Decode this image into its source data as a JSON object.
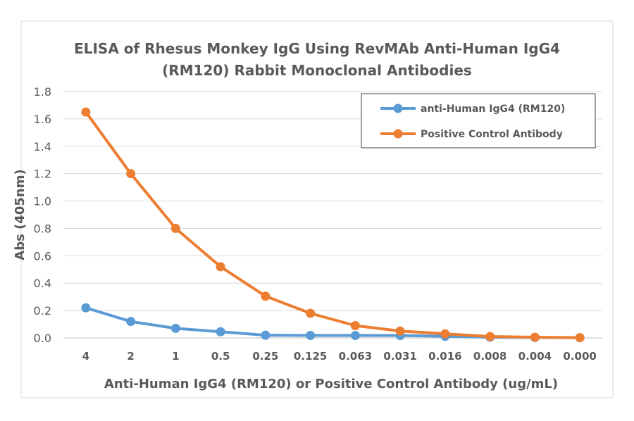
{
  "chart_data": {
    "type": "line",
    "title": "ELISA of Rhesus Monkey IgG Using RevMAb Anti-Human IgG4 (RM120) Rabbit Monoclonal Antibodies",
    "title_lines": [
      "ELISA of Rhesus Monkey IgG Using RevMAb Anti-Human IgG4",
      "(RM120) Rabbit Monoclonal Antibodies"
    ],
    "xlabel": "Anti-Human IgG4 (RM120) or Positive Control Antibody (ug/mL)",
    "ylabel": "Abs (405nm)",
    "categories": [
      "4",
      "2",
      "1",
      "0.5",
      "0.25",
      "0.125",
      "0.063",
      "0.031",
      "0.016",
      "0.008",
      "0.004",
      "0.000"
    ],
    "ylim": [
      0,
      1.8
    ],
    "yticks": [
      "0.0",
      "0.2",
      "0.4",
      "0.6",
      "0.8",
      "1.0",
      "1.2",
      "1.4",
      "1.6",
      "1.8"
    ],
    "grid": true,
    "legend_position": "top-right",
    "series": [
      {
        "name": "anti-Human IgG4 (RM120)",
        "color": "#5b9bd5",
        "values": [
          0.22,
          0.12,
          0.07,
          0.045,
          0.02,
          0.018,
          0.018,
          0.018,
          0.012,
          0.005,
          0.003,
          0.002
        ]
      },
      {
        "name": "Positive Control Antibody",
        "color": "#ed7d31",
        "values": [
          1.65,
          1.2,
          0.8,
          0.52,
          0.305,
          0.18,
          0.09,
          0.05,
          0.03,
          0.01,
          0.005,
          0.002
        ]
      }
    ]
  }
}
